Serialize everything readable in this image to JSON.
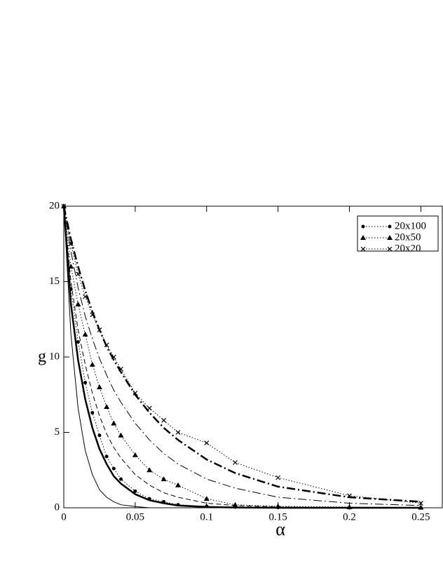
{
  "chart_data": {
    "type": "line",
    "x_label": "α",
    "y_label": "g",
    "x": [
      0,
      0.005,
      0.01,
      0.015,
      0.02,
      0.025,
      0.03,
      0.035,
      0.04,
      0.05,
      0.06,
      0.07,
      0.08,
      0.1,
      0.12,
      0.15,
      0.2,
      0.25
    ],
    "xlim": [
      0,
      0.265
    ],
    "ylim": [
      0,
      20
    ],
    "xticks": [
      0,
      0.05,
      0.1,
      0.15,
      0.2,
      0.25
    ],
    "yticks": [
      0,
      5,
      10,
      15,
      20
    ],
    "legend": "upper right",
    "series": [
      {
        "name": "20x100",
        "marker": "circle",
        "dash": "dotted",
        "color": "#000000",
        "values": [
          20,
          14.5,
          11,
          8.3,
          6.3,
          4.8,
          3.4,
          2.6,
          1.9,
          1.1,
          0.6,
          0.4,
          0.2,
          0.1,
          0.05,
          0.02,
          0,
          0
        ]
      },
      {
        "name": "20x50",
        "marker": "triangle",
        "dash": "dotted",
        "color": "#000000",
        "values": [
          20,
          16,
          13.5,
          11.5,
          9.5,
          8,
          6.7,
          5.6,
          4.8,
          3.5,
          2.5,
          1.9,
          1.5,
          0.6,
          0.2,
          0.1,
          0.05,
          0.02
        ]
      },
      {
        "name": "20x20",
        "marker": "x",
        "dash": "dotted",
        "color": "#000000",
        "values": [
          20,
          17.5,
          15.5,
          14,
          12.8,
          11.8,
          10.8,
          10,
          9.2,
          7.6,
          6.6,
          5.8,
          5,
          4.3,
          3,
          2,
          0.8,
          0.3
        ]
      },
      {
        "dash": "solid",
        "width": 1,
        "color": "#000000",
        "values": [
          20,
          11.5,
          6.6,
          3.8,
          2.2,
          1.2,
          0.7,
          0.4,
          0.2,
          0.08,
          0,
          0,
          0,
          0,
          0,
          0,
          0,
          0
        ]
      },
      {
        "dash": "solid",
        "width": 2.5,
        "color": "#000000",
        "values": [
          20,
          13.5,
          9.8,
          7.2,
          5.3,
          3.9,
          2.9,
          2.1,
          1.6,
          0.9,
          0.5,
          0.3,
          0.15,
          0.05,
          0.02,
          0,
          0,
          0
        ]
      },
      {
        "dash": "dashed",
        "width": 1,
        "color": "#000000",
        "values": [
          20,
          15,
          11.8,
          9.5,
          7.6,
          6.1,
          4.9,
          4,
          3.3,
          2.2,
          1.5,
          1,
          0.7,
          0.3,
          0.15,
          0.05,
          0,
          0
        ]
      },
      {
        "dash": "dashdot",
        "width": 2.5,
        "color": "#000000",
        "values": [
          20,
          17.8,
          16,
          14.4,
          13,
          11.8,
          10.7,
          9.8,
          9,
          7.5,
          6.3,
          5.3,
          4.5,
          3.2,
          2.3,
          1.4,
          0.7,
          0.4
        ]
      },
      {
        "dash": "dashdot",
        "width": 1,
        "color": "#000000",
        "values": [
          20,
          17,
          14.6,
          12.7,
          11.2,
          9.9,
          8.8,
          7.8,
          7,
          5.6,
          4.5,
          3.6,
          2.9,
          1.9,
          1.3,
          0.7,
          0.3,
          0.15
        ]
      }
    ]
  }
}
